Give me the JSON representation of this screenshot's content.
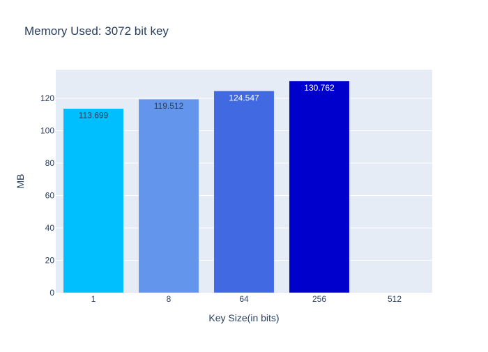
{
  "chart_data": {
    "type": "bar",
    "title": "Memory Used: 3072 bit key",
    "xlabel": "Key Size(in bits)",
    "ylabel": "MB",
    "categories": [
      "1",
      "8",
      "64",
      "256",
      "512"
    ],
    "values": [
      113.699,
      119.512,
      124.547,
      130.762,
      0
    ],
    "data_labels": [
      "113.699",
      "119.512",
      "124.547",
      "130.762",
      ""
    ],
    "bar_colors": [
      "#00bfff",
      "#6495ed",
      "#4169e1",
      "#0000cd",
      "#00008b"
    ],
    "label_colors": [
      "#2a3f5f",
      "#2a3f5f",
      "#ffffff",
      "#ffffff",
      "#ffffff"
    ],
    "ylim": [
      0,
      137.644
    ],
    "yticks": [
      0,
      20,
      40,
      60,
      80,
      100,
      120
    ],
    "grid": true,
    "legend": "none",
    "colors": {
      "plot_background": "#e5ecf6",
      "gridline": "#ffffff",
      "text": "#2a3f5f",
      "tick_text": "#2a3f5f"
    }
  }
}
